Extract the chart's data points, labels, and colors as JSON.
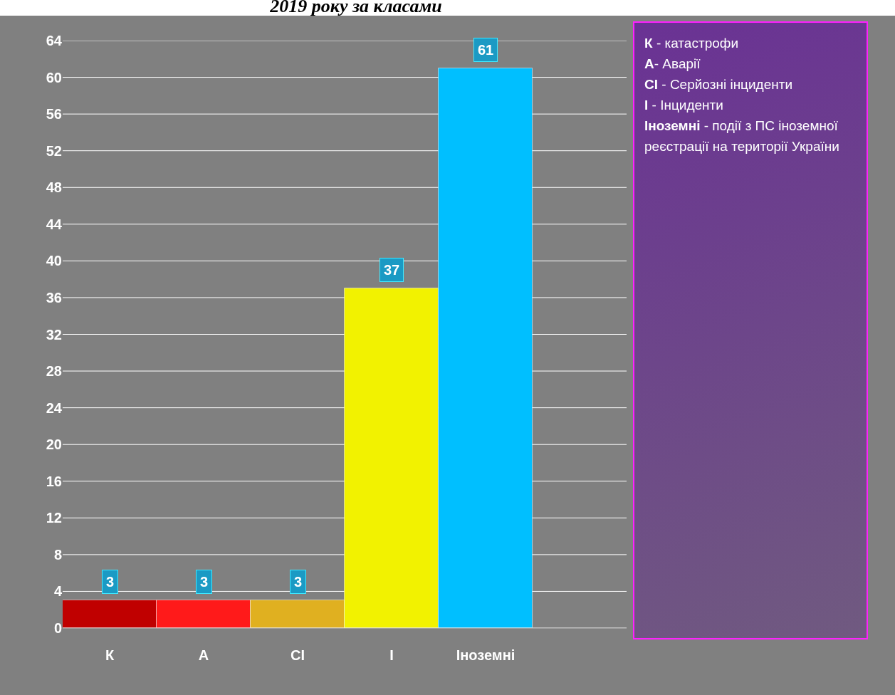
{
  "chart_data": {
    "type": "bar",
    "title": "2019 року за класами",
    "categories": [
      "К",
      "А",
      "СІ",
      "І",
      "Іноземні",
      null
    ],
    "values": [
      3,
      3,
      3,
      37,
      61,
      null
    ],
    "colors": [
      "#c00000",
      "#ff1a1a",
      "#e0b020",
      "#f2f200",
      "#00bfff",
      "#00bfff"
    ],
    "ylim": [
      0,
      64
    ],
    "yticks": [
      0,
      4,
      8,
      12,
      16,
      20,
      24,
      28,
      32,
      36,
      40,
      44,
      48,
      52,
      56,
      60,
      64
    ],
    "grid": "y",
    "data_labels": true,
    "annotations": [
      "К - катастрофи",
      "А- Аварії",
      "СІ - Серйозні інциденти",
      "І - Інциденти",
      "Іноземні - події з ПС іноземної реєстрації на території України"
    ]
  }
}
